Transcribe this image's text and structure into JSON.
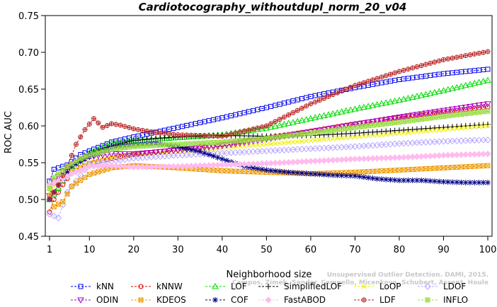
{
  "chart_data": {
    "type": "line",
    "title": "Cardiotocography_withoutdupl_norm_20_v04",
    "xlabel": "Neighborhood size",
    "ylabel": "ROC AUC",
    "xlim": [
      1,
      100
    ],
    "ylim": [
      0.45,
      0.75
    ],
    "xticks": [
      "1",
      "10",
      "20",
      "30",
      "40",
      "50",
      "60",
      "70",
      "80",
      "90",
      "100"
    ],
    "yticks": [
      "0.45",
      "0.50",
      "0.55",
      "0.60",
      "0.65",
      "0.70",
      "0.75"
    ],
    "watermark": [
      "Unsupervised Outlier Detection. DAMI, 2015.",
      "Campos, Zimek, Sander, Campello, Micenkova, Schubert, Assent, Houle"
    ],
    "series": [
      {
        "name": "kNN",
        "color": "#0000ee",
        "marker": "square",
        "points": [
          [
            1,
            0.525
          ],
          [
            2,
            0.541
          ],
          [
            3,
            0.543
          ],
          [
            5,
            0.547
          ],
          [
            8,
            0.561
          ],
          [
            10,
            0.566
          ],
          [
            15,
            0.578
          ],
          [
            20,
            0.585
          ],
          [
            30,
            0.598
          ],
          [
            40,
            0.611
          ],
          [
            50,
            0.625
          ],
          [
            60,
            0.64
          ],
          [
            70,
            0.652
          ],
          [
            80,
            0.663
          ],
          [
            90,
            0.671
          ],
          [
            100,
            0.677
          ]
        ]
      },
      {
        "name": "kNNW",
        "color": "#dd0000",
        "marker": "circle",
        "points": [
          [
            1,
            0.483
          ],
          [
            2,
            0.5
          ],
          [
            4,
            0.52
          ],
          [
            6,
            0.537
          ],
          [
            10,
            0.549
          ],
          [
            15,
            0.556
          ],
          [
            20,
            0.561
          ],
          [
            30,
            0.568
          ],
          [
            40,
            0.575
          ],
          [
            50,
            0.584
          ],
          [
            60,
            0.593
          ],
          [
            70,
            0.603
          ],
          [
            80,
            0.611
          ],
          [
            90,
            0.619
          ],
          [
            100,
            0.626
          ]
        ]
      },
      {
        "name": "LOF",
        "color": "#00dd00",
        "marker": "triangle-up",
        "points": [
          [
            1,
            0.5
          ],
          [
            3,
            0.515
          ],
          [
            6,
            0.545
          ],
          [
            10,
            0.563
          ],
          [
            15,
            0.576
          ],
          [
            20,
            0.58
          ],
          [
            30,
            0.584
          ],
          [
            40,
            0.588
          ],
          [
            50,
            0.597
          ],
          [
            60,
            0.61
          ],
          [
            70,
            0.623
          ],
          [
            80,
            0.635
          ],
          [
            90,
            0.648
          ],
          [
            100,
            0.662
          ]
        ]
      },
      {
        "name": "SimplifiedLOF",
        "color": "#000000",
        "marker": "plus",
        "points": [
          [
            1,
            0.5
          ],
          [
            3,
            0.52
          ],
          [
            6,
            0.546
          ],
          [
            10,
            0.562
          ],
          [
            15,
            0.573
          ],
          [
            20,
            0.58
          ],
          [
            25,
            0.583
          ],
          [
            30,
            0.585
          ],
          [
            40,
            0.587
          ],
          [
            50,
            0.586
          ],
          [
            60,
            0.587
          ],
          [
            70,
            0.59
          ],
          [
            80,
            0.594
          ],
          [
            90,
            0.598
          ],
          [
            100,
            0.602
          ]
        ]
      },
      {
        "name": "LoOP",
        "color": "#eeee00",
        "marker": "x",
        "points": [
          [
            1,
            0.51
          ],
          [
            3,
            0.525
          ],
          [
            6,
            0.54
          ],
          [
            10,
            0.55
          ],
          [
            15,
            0.557
          ],
          [
            20,
            0.56
          ],
          [
            30,
            0.565
          ],
          [
            40,
            0.57
          ],
          [
            50,
            0.575
          ],
          [
            60,
            0.58
          ],
          [
            70,
            0.585
          ],
          [
            80,
            0.59
          ],
          [
            90,
            0.595
          ],
          [
            100,
            0.6
          ]
        ]
      },
      {
        "name": "LDOF",
        "color": "#b8a8ff",
        "marker": "diamond",
        "points": [
          [
            1,
            0.48
          ],
          [
            3,
            0.475
          ],
          [
            5,
            0.51
          ],
          [
            10,
            0.548
          ],
          [
            15,
            0.552
          ],
          [
            20,
            0.556
          ],
          [
            30,
            0.56
          ],
          [
            40,
            0.563
          ],
          [
            50,
            0.566
          ],
          [
            60,
            0.569
          ],
          [
            70,
            0.572
          ],
          [
            80,
            0.576
          ],
          [
            90,
            0.579
          ],
          [
            100,
            0.581
          ]
        ]
      },
      {
        "name": "ODIN",
        "color": "#aa00cc",
        "marker": "triangle-down",
        "points": [
          [
            1,
            0.505
          ],
          [
            2,
            0.525
          ],
          [
            4,
            0.538
          ],
          [
            6,
            0.548
          ],
          [
            10,
            0.558
          ],
          [
            15,
            0.562
          ],
          [
            20,
            0.562
          ],
          [
            30,
            0.567
          ],
          [
            40,
            0.573
          ],
          [
            50,
            0.582
          ],
          [
            60,
            0.592
          ],
          [
            70,
            0.602
          ],
          [
            80,
            0.612
          ],
          [
            90,
            0.621
          ],
          [
            100,
            0.63
          ]
        ]
      },
      {
        "name": "KDEOS",
        "color": "#ee9900",
        "marker": "square-x",
        "points": [
          [
            1,
            0.505
          ],
          [
            2,
            0.49
          ],
          [
            4,
            0.497
          ],
          [
            6,
            0.518
          ],
          [
            10,
            0.534
          ],
          [
            15,
            0.543
          ],
          [
            20,
            0.546
          ],
          [
            30,
            0.543
          ],
          [
            40,
            0.539
          ],
          [
            50,
            0.537
          ],
          [
            60,
            0.535
          ],
          [
            70,
            0.537
          ],
          [
            80,
            0.54
          ],
          [
            90,
            0.543
          ],
          [
            100,
            0.546
          ]
        ]
      },
      {
        "name": "COF",
        "color": "#000088",
        "marker": "star",
        "points": [
          [
            1,
            0.5
          ],
          [
            3,
            0.52
          ],
          [
            6,
            0.545
          ],
          [
            10,
            0.558
          ],
          [
            15,
            0.57
          ],
          [
            20,
            0.574
          ],
          [
            25,
            0.576
          ],
          [
            30,
            0.572
          ],
          [
            35,
            0.565
          ],
          [
            40,
            0.555
          ],
          [
            45,
            0.545
          ],
          [
            50,
            0.54
          ],
          [
            55,
            0.537
          ],
          [
            60,
            0.535
          ],
          [
            65,
            0.533
          ],
          [
            70,
            0.532
          ],
          [
            75,
            0.528
          ],
          [
            80,
            0.526
          ],
          [
            85,
            0.526
          ],
          [
            90,
            0.524
          ],
          [
            95,
            0.523
          ],
          [
            100,
            0.523
          ]
        ]
      },
      {
        "name": "FastABOD",
        "color": "#ffbbee",
        "marker": "diamond-filled",
        "points": [
          [
            1,
            0.52
          ],
          [
            3,
            0.525
          ],
          [
            6,
            0.535
          ],
          [
            10,
            0.545
          ],
          [
            15,
            0.546
          ],
          [
            20,
            0.544
          ],
          [
            30,
            0.545
          ],
          [
            40,
            0.547
          ],
          [
            50,
            0.549
          ],
          [
            60,
            0.552
          ],
          [
            70,
            0.555
          ],
          [
            80,
            0.557
          ],
          [
            90,
            0.56
          ],
          [
            100,
            0.562
          ]
        ]
      },
      {
        "name": "LDF",
        "color": "#bb2222",
        "marker": "circle-plus",
        "points": [
          [
            1,
            0.5
          ],
          [
            3,
            0.52
          ],
          [
            5,
            0.545
          ],
          [
            7,
            0.575
          ],
          [
            9,
            0.595
          ],
          [
            11,
            0.61
          ],
          [
            13,
            0.598
          ],
          [
            15,
            0.603
          ],
          [
            17,
            0.601
          ],
          [
            20,
            0.596
          ],
          [
            25,
            0.591
          ],
          [
            30,
            0.588
          ],
          [
            40,
            0.586
          ],
          [
            50,
            0.6
          ],
          [
            60,
            0.63
          ],
          [
            70,
            0.655
          ],
          [
            80,
            0.674
          ],
          [
            90,
            0.69
          ],
          [
            100,
            0.701
          ]
        ]
      },
      {
        "name": "INFLO",
        "color": "#99dd44",
        "marker": "square-star",
        "points": [
          [
            1,
            0.515
          ],
          [
            2,
            0.53
          ],
          [
            3,
            0.535
          ],
          [
            5,
            0.545
          ],
          [
            8,
            0.555
          ],
          [
            10,
            0.56
          ],
          [
            15,
            0.568
          ],
          [
            20,
            0.572
          ],
          [
            30,
            0.575
          ],
          [
            40,
            0.578
          ],
          [
            50,
            0.583
          ],
          [
            60,
            0.59
          ],
          [
            70,
            0.598
          ],
          [
            80,
            0.605
          ],
          [
            90,
            0.613
          ],
          [
            100,
            0.62
          ]
        ]
      }
    ]
  }
}
